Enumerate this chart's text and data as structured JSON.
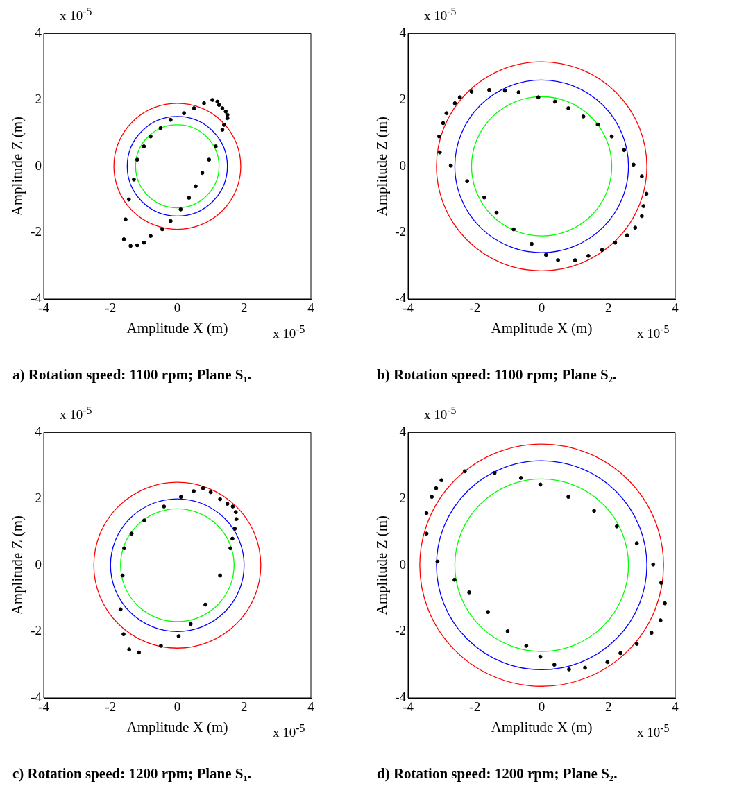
{
  "chart_data": [
    {
      "type": "scatter",
      "title": "a) Rotation speed: 1100 rpm; Plane S₁.",
      "xlabel": "Amplitude X (m)",
      "ylabel": "Amplitude Z (m)",
      "annotations": [
        "x 10$^{-5}$",
        "x 10$^{-5}$"
      ],
      "xlim": [
        -4,
        4
      ],
      "ylim": [
        -4,
        4
      ],
      "xticks": [
        -4,
        -2,
        0,
        2,
        4
      ],
      "yticks": [
        -4,
        -2,
        0,
        2,
        4
      ],
      "grid": false,
      "legend": false,
      "series": [
        {
          "type": "scatter",
          "color": "#000000",
          "x": [
            -1.4,
            -1.6,
            -1.55,
            -1.45,
            -1.3,
            -1.2,
            -1.0,
            -0.8,
            -0.5,
            -0.2,
            0.2,
            0.5,
            0.8,
            1.05,
            1.2,
            1.25,
            1.35,
            1.45,
            1.5,
            1.5,
            1.4,
            1.35,
            1.15,
            0.95,
            0.75,
            0.55,
            0.35,
            0.1,
            -0.2,
            -0.45,
            -0.8,
            -1.0,
            -1.2
          ],
          "values": [
            -2.4,
            -2.2,
            -1.6,
            -1.0,
            -0.4,
            0.2,
            0.6,
            0.9,
            1.15,
            1.4,
            1.6,
            1.75,
            1.9,
            2.0,
            1.95,
            1.85,
            1.75,
            1.65,
            1.55,
            1.45,
            1.25,
            1.1,
            0.6,
            0.2,
            -0.2,
            -0.6,
            -0.95,
            -1.3,
            -1.65,
            -1.9,
            -2.1,
            -2.3,
            -2.38
          ]
        }
      ]
    },
    {
      "type": "scatter",
      "title": "b) Rotation speed: 1100 rpm; Plane S₂.",
      "xlabel": "Amplitude X (m)",
      "ylabel": "Amplitude Z (m)",
      "annotations": [
        "x 10$^{-5}$",
        "x 10$^{-5}$"
      ],
      "xlim": [
        -4,
        4
      ],
      "ylim": [
        -4,
        4
      ],
      "xticks": [
        -4,
        -2,
        0,
        2,
        4
      ],
      "yticks": [
        -4,
        -2,
        0,
        2,
        4
      ],
      "grid": false,
      "legend": false,
      "series": [
        {
          "type": "scatter",
          "color": "#000000",
          "x": [
            -3.05,
            -3.07,
            -2.95,
            -2.85,
            -2.6,
            -2.45,
            -2.1,
            -1.57,
            -1.1,
            -0.69,
            -0.1,
            0.4,
            0.8,
            1.25,
            1.68,
            2.1,
            2.47,
            2.75,
            3.0,
            3.14,
            3.05,
            3.0,
            2.8,
            2.56,
            2.2,
            1.81,
            1.4,
            1.0,
            0.49,
            0.13,
            -0.3,
            -0.84,
            -1.35,
            -1.72,
            -2.23,
            -2.72
          ],
          "values": [
            0.42,
            0.9,
            1.3,
            1.6,
            1.9,
            2.08,
            2.25,
            2.3,
            2.28,
            2.23,
            2.08,
            1.95,
            1.75,
            1.5,
            1.26,
            0.9,
            0.49,
            0.05,
            -0.3,
            -0.83,
            -1.2,
            -1.5,
            -1.85,
            -2.08,
            -2.3,
            -2.52,
            -2.7,
            -2.83,
            -2.83,
            -2.67,
            -2.34,
            -1.9,
            -1.4,
            -0.94,
            -0.45,
            0.02
          ]
        }
      ]
    },
    {
      "type": "scatter",
      "title": "c) Rotation speed: 1200 rpm; Plane S₁.",
      "xlabel": "Amplitude X (m)",
      "ylabel": "Amplitude Z (m)",
      "annotations": [
        "x 10$^{-5}$",
        "x 10$^{-5}$"
      ],
      "xlim": [
        -4,
        4
      ],
      "ylim": [
        -4,
        4
      ],
      "xticks": [
        -4,
        -2,
        0,
        2,
        4
      ],
      "yticks": [
        -4,
        -2,
        0,
        2,
        4
      ],
      "grid": false,
      "legend": false,
      "series": [
        {
          "type": "scatter",
          "color": "#000000",
          "x": [
            0.77,
            1.0,
            1.28,
            1.5,
            1.66,
            1.75,
            1.77,
            1.72,
            1.65,
            1.59,
            1.28,
            0.84,
            0.4,
            0.04,
            -0.49,
            -1.15,
            -1.44,
            -1.61,
            -1.7,
            -1.64,
            -1.59,
            -1.37,
            -0.99,
            -0.4,
            0.11,
            0.49
          ],
          "values": [
            2.32,
            2.2,
            1.99,
            1.85,
            1.77,
            1.6,
            1.39,
            1.1,
            0.8,
            0.51,
            -0.31,
            -1.19,
            -1.77,
            -2.14,
            -2.43,
            -2.63,
            -2.54,
            -2.08,
            -1.33,
            -0.31,
            0.51,
            0.95,
            1.35,
            1.77,
            2.06,
            2.23
          ]
        }
      ]
    },
    {
      "type": "scatter",
      "title": "d) Rotation speed: 1200 rpm; Plane S₂.",
      "xlabel": "Amplitude X (m)",
      "ylabel": "Amplitude Z (m)",
      "annotations": [
        "x 10$^{-5}$",
        "x 10$^{-5}$"
      ],
      "xlim": [
        -4,
        4
      ],
      "ylim": [
        -4,
        4
      ],
      "xticks": [
        -4,
        -2,
        0,
        2,
        4
      ],
      "yticks": [
        -4,
        -2,
        0,
        2,
        4
      ],
      "grid": false,
      "legend": false,
      "series": [
        {
          "type": "scatter",
          "color": "#000000",
          "x": [
            -3.0,
            -2.3,
            -1.41,
            -0.62,
            -0.04,
            0.8,
            1.57,
            2.25,
            2.85,
            3.34,
            3.58,
            3.69,
            3.56,
            3.29,
            2.85,
            2.36,
            1.97,
            1.3,
            0.82,
            0.38,
            -0.04,
            -0.46,
            -1.02,
            -1.61,
            -2.17,
            -2.61,
            -3.12,
            -3.45,
            -3.45,
            -3.29,
            -3.16
          ],
          "values": [
            2.56,
            2.83,
            2.78,
            2.63,
            2.43,
            2.06,
            1.64,
            1.17,
            0.66,
            0.02,
            -0.53,
            -1.15,
            -1.66,
            -2.04,
            -2.37,
            -2.65,
            -2.92,
            -3.09,
            -3.14,
            -3.0,
            -2.76,
            -2.43,
            -1.99,
            -1.41,
            -0.82,
            -0.44,
            0.11,
            0.95,
            1.57,
            2.06,
            2.32
          ]
        }
      ]
    }
  ]
}
